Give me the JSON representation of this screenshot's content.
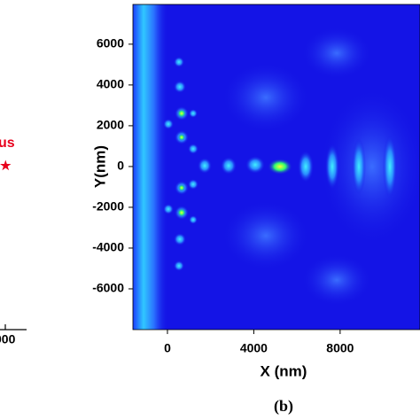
{
  "chart_data": [
    {
      "type": "scatter",
      "series": [
        {
          "name": "us",
          "color": "#e8001c",
          "marker": "★"
        }
      ],
      "xtick_labels": [
        "000"
      ]
    },
    {
      "type": "heatmap",
      "xlabel": "X (nm)",
      "ylabel": "Y(nm)",
      "caption": "(b)",
      "xlim": [
        -1600,
        11700
      ],
      "ylim": [
        -8000,
        7950
      ],
      "xticks": [
        0,
        4000,
        8000
      ],
      "yticks": [
        -6000,
        -4000,
        -2000,
        0,
        2000,
        4000,
        6000
      ],
      "color": "#1414e6"
    }
  ]
}
